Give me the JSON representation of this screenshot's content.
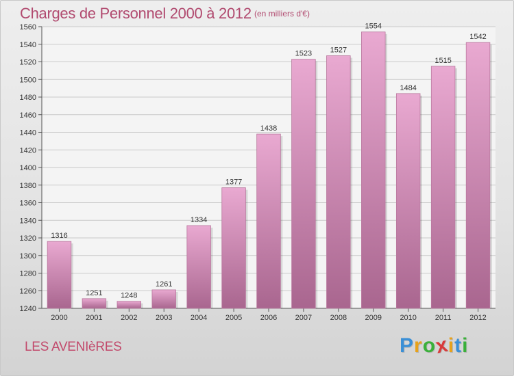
{
  "chart_title": "Charges de Personnel 2000 à 2012",
  "chart_unit": "(en milliers d'€)",
  "commune": "LES AVENIèRES",
  "logo": {
    "letters": [
      "P",
      "r",
      "o",
      "x",
      "i",
      "t",
      "i"
    ],
    "colors": [
      "#3a8fd6",
      "#e8a21a",
      "#3ab03a",
      "#d83a3a",
      "#e8a21a",
      "#3a8fd6",
      "#3ab03a"
    ]
  },
  "colors": {
    "bar_top": "#e9a9d1",
    "bar_bottom": "#a9668f",
    "text": "#b14a6f",
    "axis_text": "#333333"
  },
  "chart_data": {
    "type": "bar",
    "title": "Charges de Personnel 2000 à 2012",
    "subtitle": "(en milliers d'€)",
    "categories": [
      "2000",
      "2001",
      "2002",
      "2003",
      "2004",
      "2005",
      "2006",
      "2007",
      "2008",
      "2009",
      "2010",
      "2011",
      "2012"
    ],
    "values": [
      1316,
      1251,
      1248,
      1261,
      1334,
      1377,
      1438,
      1523,
      1527,
      1554,
      1484,
      1515,
      1542
    ],
    "ylim": [
      1240,
      1560
    ],
    "yticks": [
      1240,
      1260,
      1280,
      1300,
      1320,
      1340,
      1360,
      1380,
      1400,
      1420,
      1440,
      1460,
      1480,
      1500,
      1520,
      1540,
      1560
    ],
    "grid": true,
    "xlabel": "",
    "ylabel": ""
  }
}
